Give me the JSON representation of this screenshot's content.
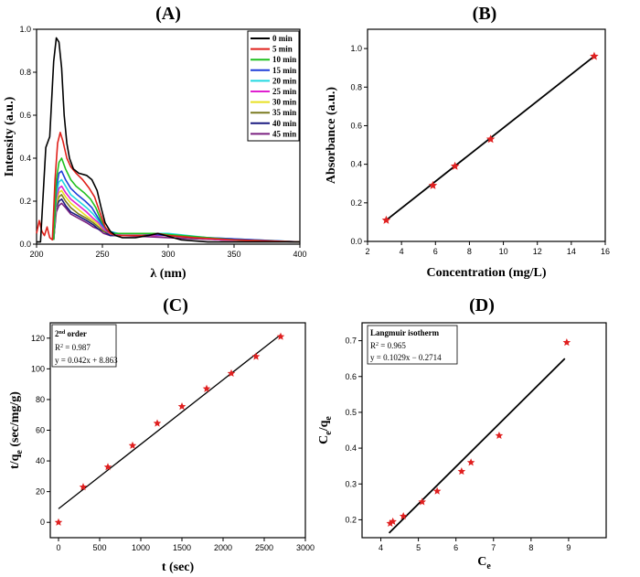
{
  "chart_data": [
    {
      "id": "A",
      "type": "line",
      "title": "(A)",
      "xlabel": "λ (nm)",
      "ylabel": "Intensity (a.u.)",
      "xlim": [
        200,
        400
      ],
      "ylim": [
        0,
        1.0
      ],
      "xticks": [
        200,
        250,
        300,
        350,
        400
      ],
      "yticks": [
        0.0,
        0.2,
        0.4,
        0.6,
        0.8,
        1.0
      ],
      "legend_position": "top-right",
      "series": [
        {
          "name": "0 min",
          "color": "#000000",
          "values": [
            [
              200,
              0.01
            ],
            [
              203,
              0.01
            ],
            [
              207,
              0.45
            ],
            [
              210,
              0.5
            ],
            [
              213,
              0.85
            ],
            [
              215,
              0.96
            ],
            [
              217,
              0.94
            ],
            [
              219,
              0.82
            ],
            [
              221,
              0.6
            ],
            [
              223,
              0.47
            ],
            [
              225,
              0.4
            ],
            [
              228,
              0.35
            ],
            [
              232,
              0.33
            ],
            [
              238,
              0.32
            ],
            [
              242,
              0.3
            ],
            [
              246,
              0.25
            ],
            [
              249,
              0.17
            ],
            [
              252,
              0.1
            ],
            [
              256,
              0.06
            ],
            [
              260,
              0.04
            ],
            [
              265,
              0.03
            ],
            [
              275,
              0.03
            ],
            [
              285,
              0.04
            ],
            [
              292,
              0.05
            ],
            [
              298,
              0.04
            ],
            [
              310,
              0.02
            ],
            [
              330,
              0.01
            ],
            [
              360,
              0.01
            ],
            [
              400,
              0.01
            ]
          ]
        },
        {
          "name": "5 min",
          "color": "#e0201a",
          "values": [
            [
              200,
              0.05
            ],
            [
              202,
              0.11
            ],
            [
              204,
              0.06
            ],
            [
              206,
              0.04
            ],
            [
              208,
              0.08
            ],
            [
              210,
              0.03
            ],
            [
              212,
              0.02
            ],
            [
              214,
              0.3
            ],
            [
              216,
              0.47
            ],
            [
              218,
              0.52
            ],
            [
              220,
              0.48
            ],
            [
              223,
              0.4
            ],
            [
              226,
              0.36
            ],
            [
              230,
              0.33
            ],
            [
              235,
              0.3
            ],
            [
              240,
              0.26
            ],
            [
              244,
              0.22
            ],
            [
              248,
              0.15
            ],
            [
              252,
              0.08
            ],
            [
              256,
              0.05
            ],
            [
              260,
              0.04
            ],
            [
              270,
              0.04
            ],
            [
              285,
              0.04
            ],
            [
              292,
              0.05
            ],
            [
              300,
              0.04
            ],
            [
              320,
              0.03
            ],
            [
              350,
              0.02
            ],
            [
              400,
              0.01
            ]
          ]
        },
        {
          "name": "10 min",
          "color": "#20c020",
          "values": [
            [
              213,
              0.02
            ],
            [
              215,
              0.3
            ],
            [
              217,
              0.38
            ],
            [
              219,
              0.4
            ],
            [
              222,
              0.35
            ],
            [
              226,
              0.3
            ],
            [
              230,
              0.27
            ],
            [
              236,
              0.24
            ],
            [
              241,
              0.21
            ],
            [
              245,
              0.17
            ],
            [
              249,
              0.11
            ],
            [
              253,
              0.07
            ],
            [
              258,
              0.05
            ],
            [
              270,
              0.05
            ],
            [
              290,
              0.05
            ],
            [
              310,
              0.04
            ],
            [
              350,
              0.02
            ],
            [
              400,
              0.01
            ]
          ]
        },
        {
          "name": "15 min",
          "color": "#1f3fd8",
          "values": [
            [
              213,
              0.02
            ],
            [
              215,
              0.26
            ],
            [
              217,
              0.33
            ],
            [
              219,
              0.34
            ],
            [
              222,
              0.3
            ],
            [
              226,
              0.26
            ],
            [
              231,
              0.23
            ],
            [
              237,
              0.2
            ],
            [
              242,
              0.17
            ],
            [
              246,
              0.13
            ],
            [
              250,
              0.09
            ],
            [
              254,
              0.06
            ],
            [
              260,
              0.05
            ],
            [
              280,
              0.05
            ],
            [
              300,
              0.04
            ],
            [
              330,
              0.03
            ],
            [
              400,
              0.01
            ]
          ]
        },
        {
          "name": "20 min",
          "color": "#20d8e0",
          "values": [
            [
              213,
              0.02
            ],
            [
              215,
              0.23
            ],
            [
              217,
              0.29
            ],
            [
              219,
              0.3
            ],
            [
              222,
              0.27
            ],
            [
              226,
              0.23
            ],
            [
              232,
              0.2
            ],
            [
              238,
              0.17
            ],
            [
              243,
              0.14
            ],
            [
              247,
              0.11
            ],
            [
              251,
              0.08
            ],
            [
              255,
              0.06
            ],
            [
              262,
              0.05
            ],
            [
              280,
              0.05
            ],
            [
              300,
              0.05
            ],
            [
              330,
              0.03
            ],
            [
              400,
              0.01
            ]
          ]
        },
        {
          "name": "25 min",
          "color": "#e020d0",
          "values": [
            [
              213,
              0.02
            ],
            [
              215,
              0.21
            ],
            [
              217,
              0.26
            ],
            [
              219,
              0.27
            ],
            [
              222,
              0.24
            ],
            [
              226,
              0.21
            ],
            [
              232,
              0.18
            ],
            [
              238,
              0.15
            ],
            [
              243,
              0.12
            ],
            [
              247,
              0.1
            ],
            [
              251,
              0.07
            ],
            [
              256,
              0.05
            ],
            [
              265,
              0.04
            ],
            [
              300,
              0.04
            ],
            [
              340,
              0.02
            ],
            [
              400,
              0.01
            ]
          ]
        },
        {
          "name": "30 min",
          "color": "#e8e020",
          "values": [
            [
              213,
              0.02
            ],
            [
              215,
              0.19
            ],
            [
              217,
              0.24
            ],
            [
              219,
              0.25
            ],
            [
              222,
              0.22
            ],
            [
              226,
              0.19
            ],
            [
              232,
              0.16
            ],
            [
              238,
              0.13
            ],
            [
              243,
              0.11
            ],
            [
              247,
              0.09
            ],
            [
              251,
              0.07
            ],
            [
              256,
              0.05
            ],
            [
              265,
              0.04
            ],
            [
              300,
              0.04
            ],
            [
              340,
              0.02
            ],
            [
              400,
              0.01
            ]
          ]
        },
        {
          "name": "35 min",
          "color": "#7a7a20",
          "values": [
            [
              213,
              0.02
            ],
            [
              215,
              0.18
            ],
            [
              217,
              0.22
            ],
            [
              219,
              0.23
            ],
            [
              222,
              0.2
            ],
            [
              226,
              0.17
            ],
            [
              232,
              0.14
            ],
            [
              238,
              0.12
            ],
            [
              243,
              0.1
            ],
            [
              247,
              0.08
            ],
            [
              251,
              0.06
            ],
            [
              256,
              0.05
            ],
            [
              265,
              0.04
            ],
            [
              300,
              0.04
            ],
            [
              340,
              0.02
            ],
            [
              400,
              0.01
            ]
          ]
        },
        {
          "name": "40 min",
          "color": "#1a1a80",
          "values": [
            [
              213,
              0.02
            ],
            [
              215,
              0.17
            ],
            [
              217,
              0.2
            ],
            [
              219,
              0.21
            ],
            [
              222,
              0.18
            ],
            [
              226,
              0.15
            ],
            [
              232,
              0.13
            ],
            [
              238,
              0.11
            ],
            [
              243,
              0.09
            ],
            [
              247,
              0.07
            ],
            [
              251,
              0.06
            ],
            [
              256,
              0.04
            ],
            [
              265,
              0.04
            ],
            [
              300,
              0.04
            ],
            [
              340,
              0.02
            ],
            [
              400,
              0.01
            ]
          ]
        },
        {
          "name": "45 min",
          "color": "#7a2080",
          "values": [
            [
              213,
              0.02
            ],
            [
              215,
              0.15
            ],
            [
              217,
              0.18
            ],
            [
              219,
              0.19
            ],
            [
              222,
              0.17
            ],
            [
              226,
              0.14
            ],
            [
              232,
              0.12
            ],
            [
              238,
              0.1
            ],
            [
              243,
              0.08
            ],
            [
              247,
              0.07
            ],
            [
              251,
              0.05
            ],
            [
              256,
              0.04
            ],
            [
              265,
              0.04
            ],
            [
              300,
              0.03
            ],
            [
              340,
              0.02
            ],
            [
              400,
              0.01
            ]
          ]
        }
      ]
    },
    {
      "id": "B",
      "type": "scatter",
      "title": "(B)",
      "xlabel": "Concentration (mg/L)",
      "ylabel": "Absorbance (a.u.)",
      "xlim": [
        2,
        16
      ],
      "ylim": [
        0,
        1.1
      ],
      "xticks": [
        2,
        4,
        6,
        8,
        10,
        12,
        14,
        16
      ],
      "yticks": [
        0.0,
        0.2,
        0.4,
        0.6,
        0.8,
        1.0
      ],
      "marker_color": "#e02020",
      "x": [
        3.1,
        5.85,
        7.15,
        9.25,
        15.35
      ],
      "y": [
        0.11,
        0.29,
        0.39,
        0.53,
        0.96
      ],
      "fit_line": {
        "x": [
          3.1,
          15.35
        ],
        "y": [
          0.11,
          0.96
        ]
      }
    },
    {
      "id": "C",
      "type": "scatter",
      "title": "(C)",
      "xlabel": "t (sec)",
      "ylabel_main": "t/q",
      "ylabel_sub": "e",
      "ylabel_tail": " (sec/mg/g)",
      "xlim": [
        -100,
        3000
      ],
      "ylim": [
        -10,
        130
      ],
      "xticks": [
        0,
        500,
        1000,
        1500,
        2000,
        2500,
        3000
      ],
      "yticks": [
        0,
        20,
        40,
        60,
        80,
        100,
        120
      ],
      "marker_color": "#e02020",
      "x": [
        0,
        300,
        600,
        900,
        1200,
        1500,
        1800,
        2100,
        2400,
        2700
      ],
      "y": [
        0,
        23,
        36,
        50,
        64.5,
        75.5,
        87,
        97,
        108,
        121
      ],
      "fit_line": {
        "x": [
          0,
          2700
        ],
        "y": [
          8.863,
          122.263
        ]
      },
      "annotation": {
        "line1_main": "2",
        "line1_sup": "nd",
        "line1_tail": " order",
        "line2_main": "R",
        "line2_sup": "2",
        "line2_tail": " = 0.987",
        "line3": "y = 0.042x + 8.863"
      }
    },
    {
      "id": "D",
      "type": "scatter",
      "title": "(D)",
      "xlabel_main": "C",
      "xlabel_sub": "e",
      "ylabel_main": "C",
      "ylabel_sub1": "e",
      "ylabel_mid": "/q",
      "ylabel_sub2": "e",
      "xlim": [
        3.5,
        10
      ],
      "ylim": [
        0.15,
        0.75
      ],
      "xticks": [
        4,
        5,
        6,
        7,
        8,
        9
      ],
      "yticks": [
        0.2,
        0.3,
        0.4,
        0.5,
        0.6,
        0.7
      ],
      "marker_color": "#e02020",
      "x": [
        4.25,
        4.32,
        4.6,
        5.1,
        5.5,
        6.15,
        6.4,
        7.15,
        8.95
      ],
      "y": [
        0.19,
        0.195,
        0.21,
        0.25,
        0.28,
        0.335,
        0.36,
        0.435,
        0.695
      ],
      "fit_line": {
        "x": [
          4.22,
          8.9
        ],
        "y": [
          0.163,
          0.65
        ]
      },
      "annotation": {
        "line1": "Langmuir isotherm",
        "line2_main": "R",
        "line2_sup": "2",
        "line2_tail": " = 0.965",
        "line3": "y = 0.1029x − 0.2714"
      }
    }
  ]
}
